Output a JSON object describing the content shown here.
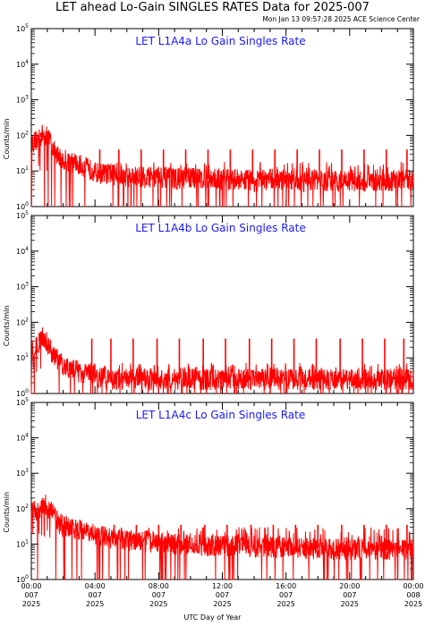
{
  "header": {
    "title": "LET ahead Lo-Gain SINGLES RATES Data for 2025-007",
    "timestamp": "Mon Jan 13 09:57:28 2025 ACE Science Center"
  },
  "xaxis": {
    "label": "UTC Day of Year",
    "ticks": [
      {
        "time": "00:00",
        "day": "007",
        "year": "2025"
      },
      {
        "time": "04:00",
        "day": "007",
        "year": "2025"
      },
      {
        "time": "08:00",
        "day": "007",
        "year": "2025"
      },
      {
        "time": "12:00",
        "day": "007",
        "year": "2025"
      },
      {
        "time": "16:00",
        "day": "007",
        "year": "2025"
      },
      {
        "time": "20:00",
        "day": "007",
        "year": "2025"
      },
      {
        "time": "00:00",
        "day": "008",
        "year": "2025"
      }
    ]
  },
  "colors": {
    "series": "#ff0000",
    "panel_title": "#1a1aff",
    "axes": "#000000"
  },
  "chart_data": [
    {
      "type": "line",
      "title": "LET L1A4a Lo Gain Singles Rate",
      "ylabel": "Counts/min",
      "yscale": "log",
      "ylim": [
        1,
        100000
      ],
      "ytick_labels": [
        "10^0",
        "10^1",
        "10^2",
        "10^3",
        "10^4",
        "10^5"
      ],
      "xlim_hours": [
        0,
        24
      ],
      "x_hours": [
        0,
        0.25,
        0.5,
        0.75,
        1,
        1.25,
        1.5,
        1.75,
        2,
        2.5,
        3,
        3.5,
        4,
        5,
        6,
        7,
        8,
        9,
        10,
        11,
        12,
        13,
        14,
        15,
        16,
        17,
        18,
        19,
        20,
        21,
        22,
        23,
        24
      ],
      "values": [
        60,
        70,
        80,
        110,
        90,
        60,
        35,
        25,
        22,
        18,
        15,
        12,
        9,
        8,
        7,
        6.5,
        7,
        6,
        6.5,
        6,
        5.5,
        6,
        5,
        6,
        5.5,
        5,
        5.5,
        5,
        5.5,
        5,
        5,
        5.5,
        6
      ],
      "spike_hours": [
        0.6,
        1.4,
        4.3,
        5.5,
        6.9,
        8.3,
        9.7,
        11.1,
        12.5,
        13.9,
        15.3,
        16.7,
        18.1,
        19.5,
        20.9,
        22.3,
        23.6
      ],
      "spike_values": [
        120,
        40,
        40,
        40,
        40,
        40,
        40,
        40,
        40,
        40,
        40,
        40,
        40,
        40,
        40,
        40,
        40
      ],
      "baseline_range": [
        2,
        15
      ]
    },
    {
      "type": "line",
      "title": "LET L1A4b Lo Gain Singles Rate",
      "ylabel": "Counts/min",
      "yscale": "log",
      "ylim": [
        1,
        100000
      ],
      "ytick_labels": [
        "10^0",
        "10^1",
        "10^2",
        "10^3",
        "10^4",
        "10^5"
      ],
      "xlim_hours": [
        0,
        24
      ],
      "x_hours": [
        0,
        0.25,
        0.5,
        0.75,
        1,
        1.25,
        1.5,
        1.75,
        2,
        2.5,
        3,
        3.5,
        4,
        5,
        6,
        7,
        8,
        9,
        10,
        11,
        12,
        13,
        14,
        15,
        16,
        17,
        18,
        19,
        20,
        21,
        22,
        23,
        24
      ],
      "values": [
        15,
        20,
        30,
        40,
        25,
        15,
        10,
        8,
        6,
        5,
        4,
        3.5,
        3,
        2.5,
        2.5,
        2.5,
        2.5,
        2.5,
        2.5,
        2.5,
        2.5,
        2.5,
        2.5,
        2.5,
        2.5,
        2.5,
        2.5,
        2.5,
        2.5,
        2.5,
        2.5,
        2.5,
        2.5
      ],
      "spike_hours": [
        0.5,
        1.2,
        3.8,
        5.0,
        6.4,
        7.9,
        9.3,
        10.8,
        12.2,
        13.7,
        15.1,
        16.5,
        17.9,
        19.4,
        20.8,
        22.2,
        23.4
      ],
      "spike_values": [
        50,
        30,
        35,
        35,
        35,
        35,
        35,
        35,
        35,
        35,
        35,
        35,
        35,
        35,
        35,
        35,
        35
      ],
      "baseline_range": [
        1,
        6
      ]
    },
    {
      "type": "line",
      "title": "LET L1A4c Lo Gain Singles Rate",
      "ylabel": "Counts/min",
      "yscale": "log",
      "ylim": [
        1,
        100000
      ],
      "ytick_labels": [
        "10^0",
        "10^1",
        "10^2",
        "10^3",
        "10^4",
        "10^5"
      ],
      "xlim_hours": [
        0,
        24
      ],
      "x_hours": [
        0,
        0.25,
        0.5,
        0.75,
        1,
        1.25,
        1.5,
        1.75,
        2,
        2.5,
        3,
        3.5,
        4,
        5,
        6,
        7,
        8,
        9,
        10,
        11,
        12,
        13,
        14,
        15,
        16,
        17,
        18,
        19,
        20,
        21,
        22,
        23,
        24
      ],
      "values": [
        80,
        85,
        90,
        150,
        120,
        80,
        55,
        45,
        35,
        30,
        25,
        22,
        18,
        15,
        13,
        12,
        11,
        10,
        10,
        9,
        9,
        9,
        8,
        8,
        8,
        7.5,
        7.5,
        7,
        7,
        7,
        7,
        7,
        7
      ],
      "spike_hours": [
        0.8,
        3.5,
        5.2,
        6.6,
        8.0,
        9.4,
        10.9,
        12.3,
        13.8,
        15.2,
        16.6,
        18.0,
        19.5,
        20.9,
        22.3,
        23.6
      ],
      "spike_values": [
        170,
        35,
        35,
        35,
        35,
        35,
        35,
        35,
        35,
        35,
        35,
        35,
        35,
        35,
        35,
        35
      ],
      "baseline_range": [
        4,
        25
      ]
    }
  ]
}
